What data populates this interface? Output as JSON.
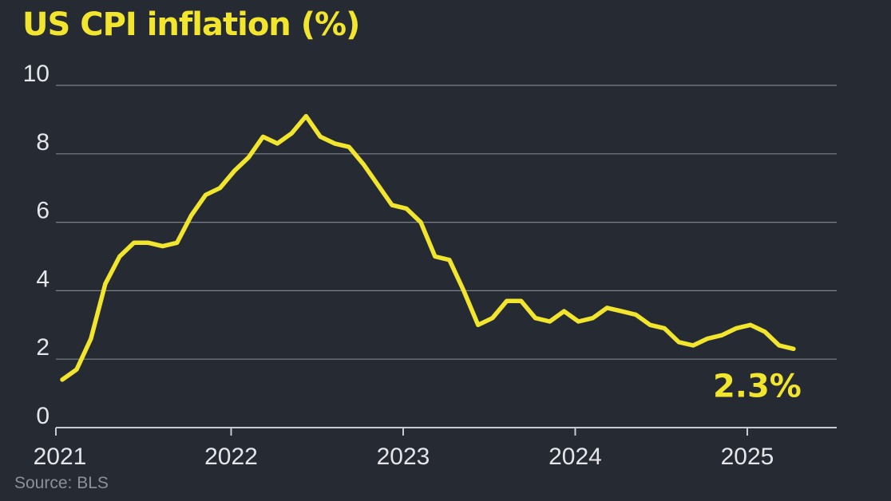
{
  "chart_data": {
    "type": "line",
    "title": "US CPI inflation (%)",
    "source": "Source: BLS",
    "ylim": [
      0,
      10
    ],
    "yticks": [
      "0",
      "2",
      "4",
      "6",
      "8",
      "10"
    ],
    "xticks": [
      {
        "label": "2021",
        "value": 2021
      },
      {
        "label": "2022",
        "value": 2022
      },
      {
        "label": "2023",
        "value": 2023
      },
      {
        "label": "2024",
        "value": 2024
      },
      {
        "label": "2025",
        "value": 2025
      }
    ],
    "grid": true,
    "colors": {
      "background": "#262a33",
      "line": "#f2e52d",
      "grid": "#7d818a",
      "text": "#e4e6ea"
    },
    "end_label": "2.3%",
    "series": [
      {
        "x": [
          "2021-01",
          "2021-02",
          "2021-03",
          "2021-04",
          "2021-05",
          "2021-06",
          "2021-07",
          "2021-08",
          "2021-09",
          "2021-10",
          "2021-11",
          "2021-12",
          "2022-01",
          "2022-02",
          "2022-03",
          "2022-04",
          "2022-05",
          "2022-06",
          "2022-07",
          "2022-08",
          "2022-09",
          "2022-10",
          "2022-11",
          "2022-12",
          "2023-01",
          "2023-02",
          "2023-03",
          "2023-04",
          "2023-05",
          "2023-06",
          "2023-07",
          "2023-08",
          "2023-09",
          "2023-10",
          "2023-11",
          "2023-12",
          "2024-01",
          "2024-02",
          "2024-03",
          "2024-04",
          "2024-05",
          "2024-06",
          "2024-07",
          "2024-08",
          "2024-09",
          "2024-10",
          "2024-11",
          "2024-12",
          "2025-01",
          "2025-02",
          "2025-03",
          "2025-04"
        ],
        "values": [
          1.4,
          1.7,
          2.6,
          4.2,
          5.0,
          5.4,
          5.4,
          5.3,
          5.4,
          6.2,
          6.8,
          7.0,
          7.5,
          7.9,
          8.5,
          8.3,
          8.6,
          9.1,
          8.5,
          8.3,
          8.2,
          7.7,
          7.1,
          6.5,
          6.4,
          6.0,
          5.0,
          4.9,
          4.0,
          3.0,
          3.2,
          3.7,
          3.7,
          3.2,
          3.1,
          3.4,
          3.1,
          3.2,
          3.5,
          3.4,
          3.3,
          3.0,
          2.9,
          2.5,
          2.4,
          2.6,
          2.7,
          2.9,
          3.0,
          2.8,
          2.4,
          2.3
        ]
      }
    ]
  }
}
